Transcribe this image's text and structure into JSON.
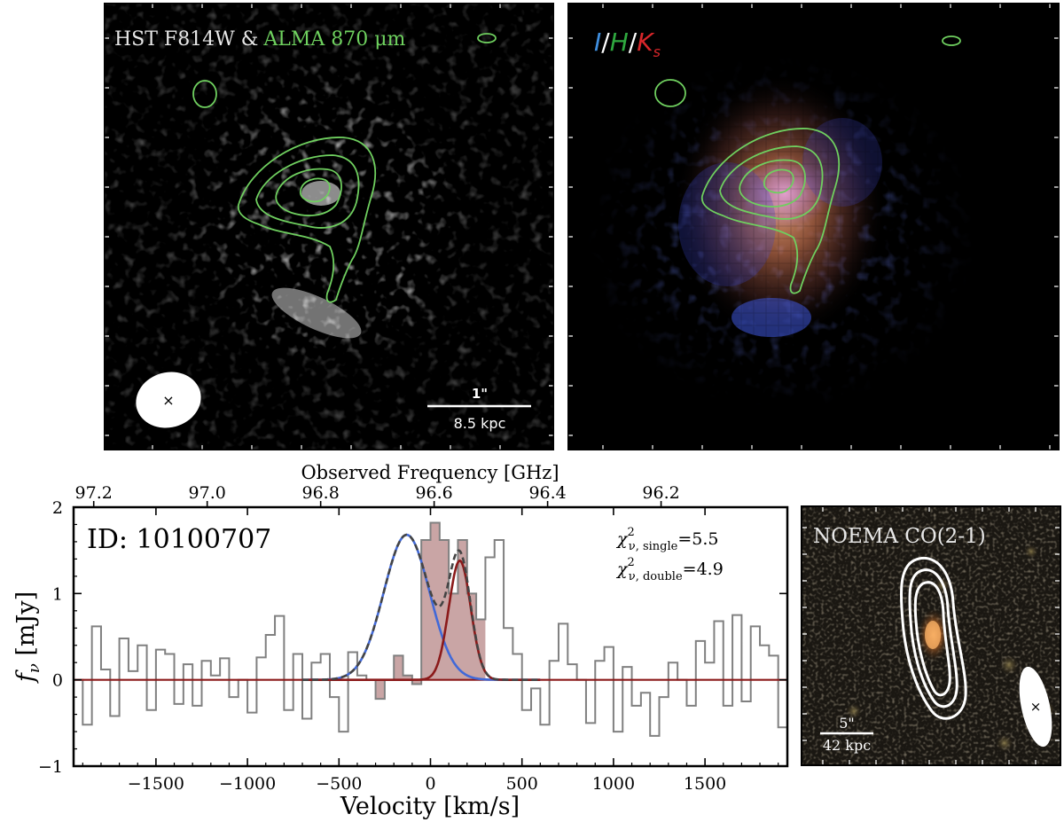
{
  "panels": {
    "hst": {
      "title_white": "HST F814W &",
      "title_green": "ALMA 870 μm",
      "scalebar_top": "1\"",
      "scalebar_bottom": "8.5 kpc"
    },
    "ihk": {
      "title": {
        "I": "I",
        "slash": "/",
        "H": "H",
        "K": "K",
        "K_sub": "s"
      },
      "colors": {
        "I": "#3f8fe0",
        "H": "#2fa83f",
        "K": "#d8262a"
      }
    },
    "noema": {
      "title": "NOEMA CO(2-1)",
      "scalebar_top": "5\"",
      "scalebar_bottom": "42 kpc"
    }
  },
  "chart_data": {
    "type": "line",
    "id_label": "ID: 10100707",
    "chi_single_text": "=5.5",
    "chi_double_text": "=4.9",
    "chi_sub_single": "ν, single",
    "chi_sub_double": "ν, double",
    "xlabel": "Velocity [km/s]",
    "ylabel": "f",
    "ylabel_sub": "ν",
    "ylabel_unit": " [mJy]",
    "top_xlabel": "Observed Frequency [GHz]",
    "xlim": [
      -1950,
      1950
    ],
    "ylim": [
      -1,
      2
    ],
    "x_ticks": [
      -1500,
      -1000,
      -500,
      0,
      500,
      1000,
      1500
    ],
    "y_ticks": [
      -1,
      0,
      1,
      2
    ],
    "top_ticks": [
      {
        "label": "97.2",
        "v": -1840
      },
      {
        "label": "97.0",
        "v": -1220
      },
      {
        "label": "96.8",
        "v": -600
      },
      {
        "label": "96.6",
        "v": 20
      },
      {
        "label": "96.4",
        "v": 640
      },
      {
        "label": "96.2",
        "v": 1260
      }
    ],
    "spectrum": {
      "bin_width": 50,
      "x_start": -1950,
      "values": [
        0.0,
        -0.52,
        0.62,
        0.12,
        -0.42,
        0.48,
        0.1,
        0.4,
        -0.35,
        0.35,
        0.3,
        -0.28,
        0.18,
        -0.3,
        0.22,
        0.05,
        0.25,
        -0.2,
        0.0,
        -0.38,
        0.26,
        0.52,
        0.74,
        -0.35,
        0.3,
        -0.45,
        0.2,
        0.3,
        -0.2,
        -0.6,
        0.32,
        0.05,
        0.0,
        -0.22,
        0.0,
        0.28,
        0.05,
        -0.05,
        1.62,
        1.82,
        1.62,
        1.0,
        1.62,
        1.0,
        0.7,
        1.42,
        1.62,
        0.6,
        0.3,
        -0.35,
        -0.1,
        -0.52,
        0.22,
        0.65,
        0.18,
        0.0,
        -0.5,
        0.22,
        0.38,
        -0.6,
        0.15,
        -0.3,
        -0.15,
        -0.65,
        -0.2,
        0.2,
        0.0,
        -0.3,
        0.45,
        0.2,
        0.68,
        -0.3,
        0.75,
        -0.25,
        0.62,
        0.4,
        0.28,
        -0.55
      ],
      "fill_range": [
        -300,
        300
      ],
      "colors": {
        "step": "#808080",
        "fill": "#c9a5a5"
      }
    },
    "fits": {
      "blue": {
        "amp": 1.68,
        "center": -130,
        "sigma": 125,
        "color": "#4169d8"
      },
      "red": {
        "amp": 1.38,
        "center": 160,
        "sigma": 60,
        "color": "#8b1a1a"
      },
      "combined_color": "#444444",
      "zero_color": "#8b1a1a"
    }
  }
}
